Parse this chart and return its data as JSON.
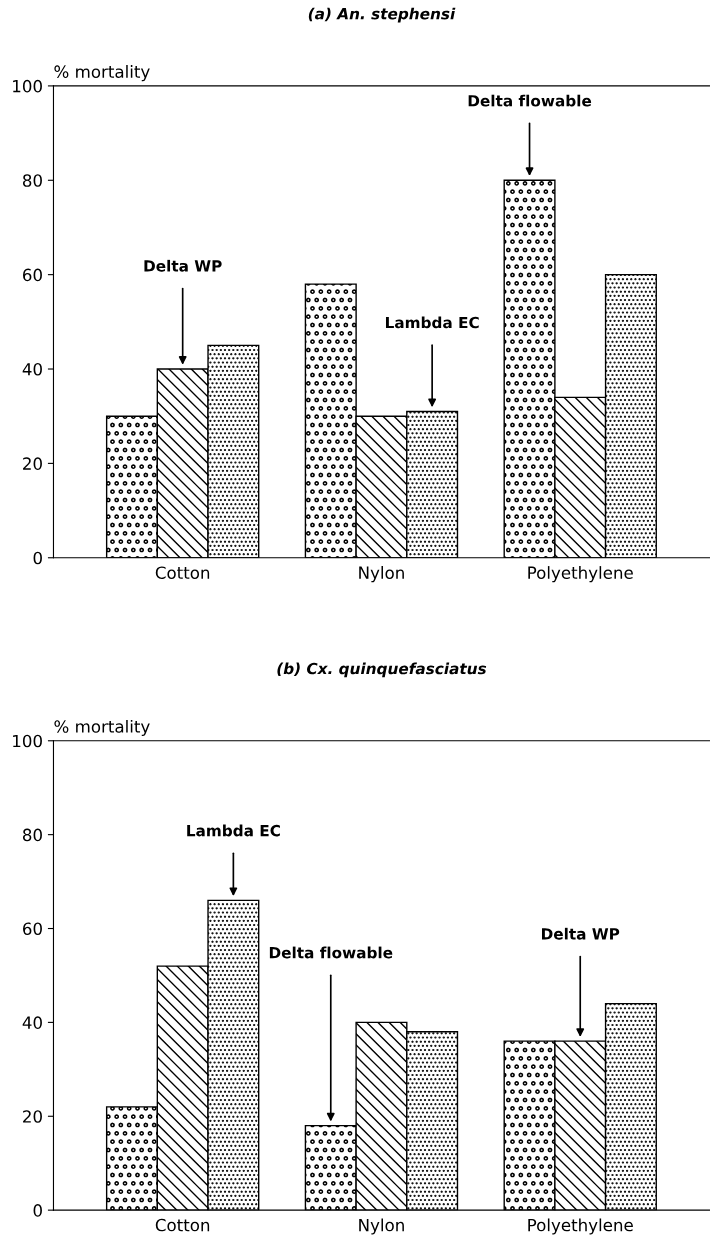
{
  "chart_data": [
    {
      "type": "bar",
      "title": "(a) An. stephensi",
      "ylabel": "% mortality",
      "categories": [
        "Cotton",
        "Nylon",
        "Polyethylene"
      ],
      "series": [
        {
          "values": [
            30,
            58,
            80
          ]
        },
        {
          "values": [
            40,
            30,
            34
          ]
        },
        {
          "values": [
            45,
            31,
            60
          ]
        }
      ],
      "ylim": [
        0,
        100
      ],
      "yticks": [
        0,
        20,
        40,
        60,
        80,
        100
      ],
      "grid": false,
      "legend": false,
      "annotations": [
        "Delta WP",
        "Lambda EC",
        "Delta flowable"
      ]
    },
    {
      "type": "bar",
      "title": "(b) Cx. quinquefasciatus",
      "ylabel": "% mortality",
      "categories": [
        "Cotton",
        "Nylon",
        "Polyethylene"
      ],
      "series": [
        {
          "values": [
            22,
            18,
            36
          ]
        },
        {
          "values": [
            52,
            40,
            36
          ]
        },
        {
          "values": [
            66,
            38,
            44
          ]
        }
      ],
      "ylim": [
        0,
        100
      ],
      "yticks": [
        0,
        20,
        40,
        60,
        80,
        100
      ],
      "grid": false,
      "legend": false,
      "annotations": [
        "Lambda EC",
        "Delta flowable",
        "Delta WP"
      ]
    }
  ]
}
